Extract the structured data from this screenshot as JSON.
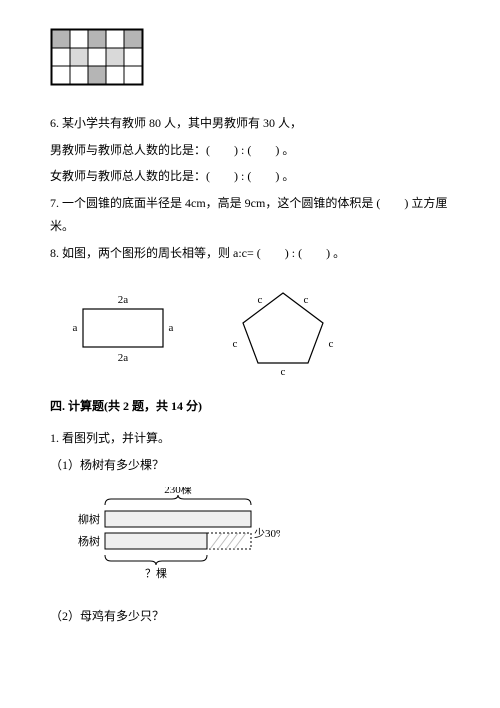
{
  "grid": {
    "rows": 3,
    "cols": 5,
    "cell": 18,
    "border": "#000000",
    "fill_dark": "#b5b5b5",
    "fill_light": "#ffffff",
    "fill_half": "#d9d9d9",
    "pattern": [
      [
        1,
        0,
        1,
        0,
        1
      ],
      [
        0,
        2,
        0,
        2,
        0
      ],
      [
        0,
        0,
        1,
        0,
        0
      ]
    ]
  },
  "q6": {
    "line1": "6. 某小学共有教师 80 人，其中男教师有 30 人，",
    "line2": "男教师与教师总人数的比是：(　　) : (　　) 。",
    "line3": "女教师与教师总人数的比是：(　　) : (　　) 。"
  },
  "q7": {
    "text": "7. 一个圆锥的底面半径是 4cm，高是 9cm，这个圆锥的体积是 (　　) 立方厘米。"
  },
  "q8": {
    "text": "8. 如图，两个图形的周长相等，则 a:c= (　　) : (　　) 。",
    "rect": {
      "a_label": "a",
      "ta_label": "2a"
    },
    "pent": {
      "c_label": "c"
    }
  },
  "section4": {
    "head": "四. 计算题(共 2 题，共 14 分)",
    "q1": "1. 看图列式，并计算。",
    "sub1": "（1）杨树有多少棵？",
    "fig": {
      "total_label": "230棵",
      "left_top": "柳树",
      "left_bot": "杨树",
      "right_label": "少30%",
      "bottom_q": "？棵"
    },
    "sub2": "（2）母鸡有多少只？"
  },
  "colors": {
    "text": "#000000",
    "line": "#000000",
    "bar_fill": "#efefef",
    "hatch": "#bdbdbd"
  }
}
